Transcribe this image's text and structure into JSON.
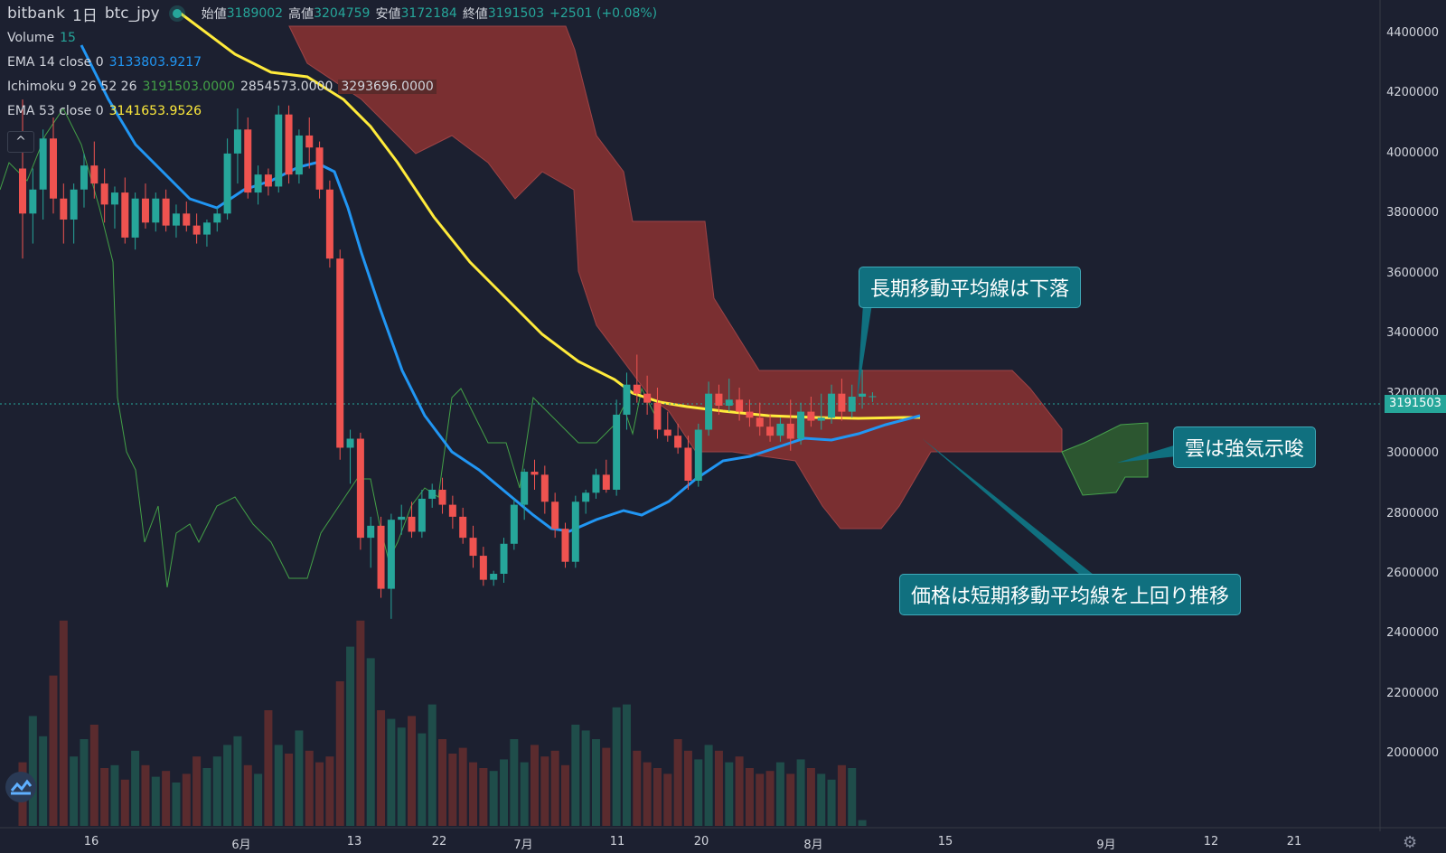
{
  "header": {
    "exchange": "bitbank",
    "interval": "1日",
    "symbol": "btc_jpy",
    "open_label": "始値",
    "open_value": "3189002",
    "high_label": "高値",
    "high_value": "3204759",
    "low_label": "安値",
    "low_value": "3172184",
    "close_label": "終値",
    "close_value": "3191503",
    "change": "+2501 (+0.08%)"
  },
  "indicators": {
    "volume_name": "Volume",
    "volume_value": "15",
    "ema14_name": "EMA 14 close 0",
    "ema14_value": "3133803.9217",
    "ichimoku_name": "Ichimoku 9 26 52 26",
    "ichimoku_v1": "3191503.0000",
    "ichimoku_v2": "2854573.0000",
    "ichimoku_v3": "3293696.0000",
    "ema53_name": "EMA 53 close 0",
    "ema53_value": "3141653.9526",
    "collapse_label": "^"
  },
  "callouts": {
    "long_ma": "長期移動平均線は下落",
    "cloud": "雲は強気示唆",
    "price": "価格は短期移動平均線を上回り推移"
  },
  "price_axis": {
    "ticks": [
      "4400000",
      "4200000",
      "4000000",
      "3800000",
      "3600000",
      "3400000",
      "3200000",
      "3000000",
      "2800000",
      "2600000",
      "2400000",
      "2200000",
      "2000000"
    ],
    "current_price": "3191503"
  },
  "time_axis": {
    "ticks": [
      "16",
      "6月",
      "13",
      "22",
      "7月",
      "11",
      "20",
      "8月",
      "15",
      "9月",
      "12",
      "21"
    ]
  },
  "colors": {
    "background": "#1c2030",
    "up": "#26a69a",
    "down": "#ef5350",
    "ema14": "#2196f3",
    "ema53": "#ffeb3b",
    "cloud_bear": "#8b3232",
    "cloud_bull": "#2e5c31",
    "chikou": "#43a047",
    "callout": "#10707f"
  },
  "chart_data": {
    "type": "candlestick",
    "candles": [
      {
        "o": 3950000,
        "h": 4180000,
        "l": 3650000,
        "c": 3800000
      },
      {
        "o": 3800000,
        "h": 3950000,
        "l": 3700000,
        "c": 3880000
      },
      {
        "o": 3880000,
        "h": 4080000,
        "l": 3780000,
        "c": 4050000
      },
      {
        "o": 4050000,
        "h": 4120000,
        "l": 3800000,
        "c": 3850000
      },
      {
        "o": 3850000,
        "h": 3900000,
        "l": 3700000,
        "c": 3780000
      },
      {
        "o": 3780000,
        "h": 3900000,
        "l": 3700000,
        "c": 3880000
      },
      {
        "o": 3880000,
        "h": 4000000,
        "l": 3820000,
        "c": 3960000
      },
      {
        "o": 3960000,
        "h": 4040000,
        "l": 3850000,
        "c": 3900000
      },
      {
        "o": 3900000,
        "h": 3950000,
        "l": 3770000,
        "c": 3830000
      },
      {
        "o": 3830000,
        "h": 3890000,
        "l": 3750000,
        "c": 3870000
      },
      {
        "o": 3870000,
        "h": 3920000,
        "l": 3700000,
        "c": 3720000
      },
      {
        "o": 3720000,
        "h": 3870000,
        "l": 3680000,
        "c": 3850000
      },
      {
        "o": 3850000,
        "h": 3900000,
        "l": 3750000,
        "c": 3770000
      },
      {
        "o": 3770000,
        "h": 3870000,
        "l": 3740000,
        "c": 3850000
      },
      {
        "o": 3850000,
        "h": 3880000,
        "l": 3740000,
        "c": 3760000
      },
      {
        "o": 3760000,
        "h": 3830000,
        "l": 3720000,
        "c": 3800000
      },
      {
        "o": 3800000,
        "h": 3840000,
        "l": 3740000,
        "c": 3760000
      },
      {
        "o": 3760000,
        "h": 3800000,
        "l": 3700000,
        "c": 3730000
      },
      {
        "o": 3730000,
        "h": 3780000,
        "l": 3690000,
        "c": 3770000
      },
      {
        "o": 3770000,
        "h": 3820000,
        "l": 3740000,
        "c": 3800000
      },
      {
        "o": 3800000,
        "h": 4050000,
        "l": 3780000,
        "c": 4000000
      },
      {
        "o": 4000000,
        "h": 4150000,
        "l": 3900000,
        "c": 4080000
      },
      {
        "o": 4080000,
        "h": 4120000,
        "l": 3850000,
        "c": 3870000
      },
      {
        "o": 3870000,
        "h": 3960000,
        "l": 3830000,
        "c": 3930000
      },
      {
        "o": 3930000,
        "h": 3950000,
        "l": 3860000,
        "c": 3890000
      },
      {
        "o": 3890000,
        "h": 4160000,
        "l": 3870000,
        "c": 4130000
      },
      {
        "o": 4130000,
        "h": 4160000,
        "l": 3900000,
        "c": 3930000
      },
      {
        "o": 3930000,
        "h": 4080000,
        "l": 3900000,
        "c": 4060000
      },
      {
        "o": 4060000,
        "h": 4120000,
        "l": 3950000,
        "c": 4020000
      },
      {
        "o": 4020000,
        "h": 4040000,
        "l": 3850000,
        "c": 3880000
      },
      {
        "o": 3880000,
        "h": 3910000,
        "l": 3620000,
        "c": 3650000
      },
      {
        "o": 3650000,
        "h": 3680000,
        "l": 2980000,
        "c": 3020000
      },
      {
        "o": 3020000,
        "h": 3080000,
        "l": 2900000,
        "c": 3050000
      },
      {
        "o": 3050000,
        "h": 3070000,
        "l": 2680000,
        "c": 2720000
      },
      {
        "o": 2720000,
        "h": 2790000,
        "l": 2620000,
        "c": 2760000
      },
      {
        "o": 2760000,
        "h": 2790000,
        "l": 2520000,
        "c": 2550000
      },
      {
        "o": 2550000,
        "h": 2800000,
        "l": 2450000,
        "c": 2780000
      },
      {
        "o": 2780000,
        "h": 2830000,
        "l": 2730000,
        "c": 2790000
      },
      {
        "o": 2790000,
        "h": 2840000,
        "l": 2720000,
        "c": 2740000
      },
      {
        "o": 2740000,
        "h": 2880000,
        "l": 2720000,
        "c": 2850000
      },
      {
        "o": 2850000,
        "h": 2900000,
        "l": 2820000,
        "c": 2880000
      },
      {
        "o": 2880000,
        "h": 2920000,
        "l": 2800000,
        "c": 2830000
      },
      {
        "o": 2830000,
        "h": 2860000,
        "l": 2750000,
        "c": 2790000
      },
      {
        "o": 2790000,
        "h": 2820000,
        "l": 2700000,
        "c": 2720000
      },
      {
        "o": 2720000,
        "h": 2760000,
        "l": 2620000,
        "c": 2660000
      },
      {
        "o": 2660000,
        "h": 2690000,
        "l": 2560000,
        "c": 2580000
      },
      {
        "o": 2580000,
        "h": 2610000,
        "l": 2560000,
        "c": 2600000
      },
      {
        "o": 2600000,
        "h": 2720000,
        "l": 2570000,
        "c": 2700000
      },
      {
        "o": 2700000,
        "h": 2850000,
        "l": 2680000,
        "c": 2830000
      },
      {
        "o": 2830000,
        "h": 2950000,
        "l": 2780000,
        "c": 2940000
      },
      {
        "o": 2940000,
        "h": 2980000,
        "l": 2880000,
        "c": 2930000
      },
      {
        "o": 2930000,
        "h": 2960000,
        "l": 2800000,
        "c": 2840000
      },
      {
        "o": 2840000,
        "h": 2870000,
        "l": 2720000,
        "c": 2750000
      },
      {
        "o": 2750000,
        "h": 2770000,
        "l": 2620000,
        "c": 2640000
      },
      {
        "o": 2640000,
        "h": 2860000,
        "l": 2620000,
        "c": 2840000
      },
      {
        "o": 2840000,
        "h": 2880000,
        "l": 2800000,
        "c": 2870000
      },
      {
        "o": 2870000,
        "h": 2950000,
        "l": 2850000,
        "c": 2930000
      },
      {
        "o": 2930000,
        "h": 2980000,
        "l": 2870000,
        "c": 2880000
      },
      {
        "o": 2880000,
        "h": 3180000,
        "l": 2860000,
        "c": 3130000
      },
      {
        "o": 3130000,
        "h": 3270000,
        "l": 3080000,
        "c": 3230000
      },
      {
        "o": 3230000,
        "h": 3330000,
        "l": 3170000,
        "c": 3200000
      },
      {
        "o": 3200000,
        "h": 3260000,
        "l": 3130000,
        "c": 3170000
      },
      {
        "o": 3170000,
        "h": 3220000,
        "l": 3050000,
        "c": 3080000
      },
      {
        "o": 3080000,
        "h": 3140000,
        "l": 3040000,
        "c": 3060000
      },
      {
        "o": 3060000,
        "h": 3100000,
        "l": 3000000,
        "c": 3020000
      },
      {
        "o": 3020000,
        "h": 3060000,
        "l": 2880000,
        "c": 2910000
      },
      {
        "o": 2910000,
        "h": 3100000,
        "l": 2890000,
        "c": 3080000
      },
      {
        "o": 3080000,
        "h": 3240000,
        "l": 3060000,
        "c": 3200000
      },
      {
        "o": 3200000,
        "h": 3230000,
        "l": 3130000,
        "c": 3160000
      },
      {
        "o": 3160000,
        "h": 3250000,
        "l": 3140000,
        "c": 3180000
      },
      {
        "o": 3180000,
        "h": 3220000,
        "l": 3110000,
        "c": 3140000
      },
      {
        "o": 3140000,
        "h": 3180000,
        "l": 3090000,
        "c": 3120000
      },
      {
        "o": 3120000,
        "h": 3170000,
        "l": 3060000,
        "c": 3090000
      },
      {
        "o": 3090000,
        "h": 3130000,
        "l": 3040000,
        "c": 3060000
      },
      {
        "o": 3060000,
        "h": 3120000,
        "l": 3040000,
        "c": 3100000
      },
      {
        "o": 3100000,
        "h": 3180000,
        "l": 3010000,
        "c": 3050000
      },
      {
        "o": 3050000,
        "h": 3170000,
        "l": 3030000,
        "c": 3140000
      },
      {
        "o": 3140000,
        "h": 3190000,
        "l": 3090000,
        "c": 3110000
      },
      {
        "o": 3110000,
        "h": 3200000,
        "l": 3080000,
        "c": 3120000
      },
      {
        "o": 3120000,
        "h": 3230000,
        "l": 3100000,
        "c": 3200000
      },
      {
        "o": 3200000,
        "h": 3250000,
        "l": 3110000,
        "c": 3140000
      },
      {
        "o": 3140000,
        "h": 3230000,
        "l": 3120000,
        "c": 3190000
      },
      {
        "o": 3190000,
        "h": 3280000,
        "l": 3150000,
        "c": 3200000
      },
      {
        "o": 3189002,
        "h": 3204759,
        "l": 3172184,
        "c": 3191503
      }
    ],
    "volumes": [
      0.22,
      0.38,
      0.31,
      0.52,
      0.71,
      0.24,
      0.3,
      0.35,
      0.2,
      0.21,
      0.16,
      0.26,
      0.21,
      0.17,
      0.19,
      0.15,
      0.18,
      0.24,
      0.2,
      0.24,
      0.28,
      0.31,
      0.21,
      0.18,
      0.4,
      0.28,
      0.25,
      0.33,
      0.26,
      0.22,
      0.24,
      0.5,
      0.62,
      0.71,
      0.58,
      0.4,
      0.37,
      0.34,
      0.38,
      0.32,
      0.42,
      0.3,
      0.25,
      0.27,
      0.22,
      0.2,
      0.19,
      0.23,
      0.3,
      0.22,
      0.28,
      0.24,
      0.26,
      0.21,
      0.35,
      0.33,
      0.3,
      0.27,
      0.41,
      0.42,
      0.26,
      0.22,
      0.2,
      0.18,
      0.3,
      0.26,
      0.23,
      0.28,
      0.26,
      0.22,
      0.24,
      0.2,
      0.18,
      0.19,
      0.22,
      0.18,
      0.23,
      0.2,
      0.18,
      0.16,
      0.21,
      0.2,
      0.02
    ]
  }
}
